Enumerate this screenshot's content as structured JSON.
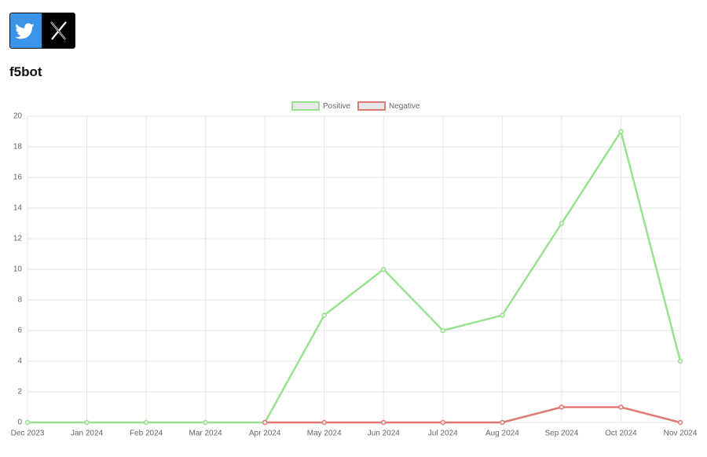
{
  "header": {
    "title": "f5bot"
  },
  "chart_data": {
    "type": "line",
    "categories": [
      "Dec 2023",
      "Jan 2024",
      "Feb 2024",
      "Mar 2024",
      "Apr 2024",
      "May 2024",
      "Jun 2024",
      "Jul 2024",
      "Aug 2024",
      "Sep 2024",
      "Oct 2024",
      "Nov 2024"
    ],
    "series": [
      {
        "name": "Positive",
        "color": "#98e28f",
        "values": [
          0,
          0,
          0,
          0,
          0,
          7,
          10,
          6,
          7,
          13,
          19,
          4
        ]
      },
      {
        "name": "Negative",
        "color": "#e07a74",
        "values": [
          null,
          null,
          null,
          null,
          0,
          0,
          0,
          0,
          0,
          1,
          1,
          0
        ]
      }
    ],
    "ylim": [
      0,
      20
    ],
    "yticks": [
      0,
      2,
      4,
      6,
      8,
      10,
      12,
      14,
      16,
      18,
      20
    ],
    "grid": true,
    "legend": "top"
  }
}
